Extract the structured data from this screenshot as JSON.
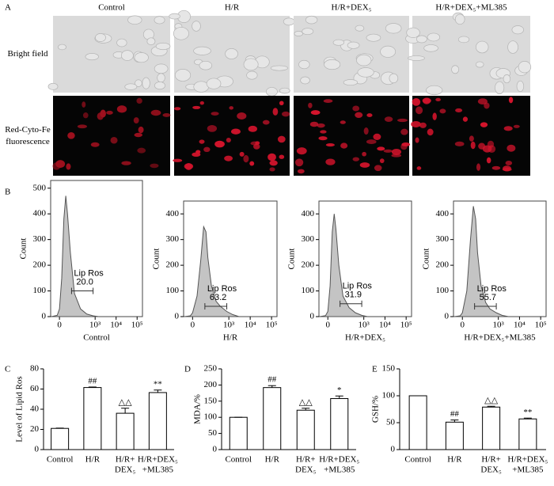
{
  "panel_labels": [
    "A",
    "B",
    "C",
    "D",
    "E"
  ],
  "panel_a": {
    "columns": [
      "Control",
      "H/R",
      "H/R+DEX₅",
      "H/R+DEX₅+ML385"
    ],
    "rows": [
      [
        "Bright field"
      ],
      [
        "Red-Cyto-Fe",
        "fluorescence"
      ]
    ]
  },
  "chart_data": [
    {
      "type": "flow",
      "xlabel": "Control",
      "ylabel": "Count",
      "xscale": "asinh",
      "asinh_width": 40,
      "xlim": [
        -45,
        180000
      ],
      "xticks": [
        0,
        {
          "value": 1000,
          "label": "10³"
        },
        {
          "value": 10000,
          "label": "10⁴"
        },
        {
          "value": 100000,
          "label": "10⁵"
        }
      ],
      "ylim": [
        0,
        530
      ],
      "yticks": [
        0,
        100,
        200,
        300,
        400,
        500
      ],
      "x": [
        -40,
        -10,
        0,
        10,
        20,
        30,
        40,
        60,
        100,
        200,
        400,
        800,
        1500
      ],
      "values": [
        0,
        5,
        30,
        150,
        380,
        470,
        400,
        250,
        90,
        30,
        10,
        3,
        0
      ],
      "gate": {
        "label": "Lip Ros",
        "value": 20,
        "value_label": "20.0",
        "range": [
          70,
          800
        ],
        "y": 100
      }
    },
    {
      "type": "flow",
      "xlabel": "H/R",
      "ylabel": "Count",
      "xscale": "asinh",
      "asinh_width": 40,
      "xlim": [
        -45,
        180000
      ],
      "xticks": [
        0,
        {
          "value": 1000,
          "label": "10³"
        },
        {
          "value": 10000,
          "label": "10⁴"
        },
        {
          "value": 100000,
          "label": "10⁵"
        }
      ],
      "ylim": [
        0,
        450
      ],
      "yticks": [
        0,
        100,
        200,
        300,
        400
      ],
      "x": [
        -40,
        -10,
        0,
        20,
        40,
        60,
        80,
        100,
        150,
        250,
        400,
        800,
        1500,
        3000
      ],
      "values": [
        0,
        3,
        15,
        80,
        220,
        350,
        330,
        230,
        120,
        60,
        40,
        20,
        8,
        0
      ],
      "gate": {
        "label": "Lip Ros",
        "value": 63.2,
        "value_label": "63.2",
        "range": [
          70,
          800
        ],
        "y": 40
      }
    },
    {
      "type": "flow",
      "xlabel": "H/R+DEX₅",
      "ylabel": "Count",
      "xscale": "asinh",
      "asinh_width": 40,
      "xlim": [
        -45,
        180000
      ],
      "xticks": [
        0,
        {
          "value": 1000,
          "label": "10³"
        },
        {
          "value": 10000,
          "label": "10⁴"
        },
        {
          "value": 100000,
          "label": "10⁵"
        }
      ],
      "ylim": [
        0,
        450
      ],
      "yticks": [
        0,
        100,
        200,
        300,
        400
      ],
      "x": [
        -40,
        -10,
        0,
        10,
        20,
        30,
        40,
        60,
        100,
        200,
        400,
        800,
        1500
      ],
      "values": [
        0,
        4,
        20,
        120,
        330,
        400,
        340,
        200,
        80,
        35,
        15,
        5,
        0
      ],
      "gate": {
        "label": "Lip Ros",
        "value": 31.9,
        "value_label": "31.9",
        "range": [
          70,
          800
        ],
        "y": 50
      }
    },
    {
      "type": "flow",
      "xlabel": "H/R+DEX₅+ML385",
      "ylabel": "Count",
      "xscale": "asinh",
      "asinh_width": 40,
      "xlim": [
        -45,
        180000
      ],
      "xticks": [
        0,
        {
          "value": 1000,
          "label": "10³"
        },
        {
          "value": 10000,
          "label": "10⁴"
        },
        {
          "value": 100000,
          "label": "10⁵"
        }
      ],
      "ylim": [
        0,
        450
      ],
      "yticks": [
        0,
        100,
        200,
        300,
        400
      ],
      "x": [
        -40,
        -10,
        0,
        20,
        40,
        60,
        80,
        100,
        150,
        250,
        400,
        800,
        1500,
        3000
      ],
      "values": [
        0,
        3,
        15,
        100,
        300,
        430,
        380,
        250,
        120,
        55,
        30,
        15,
        5,
        0
      ],
      "gate": {
        "label": "Lip Ros",
        "value": 55.7,
        "value_label": "55.7",
        "range": [
          70,
          800
        ],
        "y": 40
      }
    },
    {
      "type": "bar",
      "ylabel": "Level of Lipid Ros",
      "ylim": [
        0,
        80
      ],
      "yticks": [
        0,
        20,
        40,
        60,
        80
      ],
      "categories": [
        [
          "Control"
        ],
        [
          "H/R"
        ],
        [
          "H/R+",
          "DEX₅"
        ],
        [
          "H/R+DEX₅",
          "+ML385"
        ]
      ],
      "values": [
        21,
        61.5,
        36,
        56.5
      ],
      "errors": [
        0.3,
        0.5,
        5,
        2.5
      ],
      "annotations": [
        null,
        "##",
        "△△",
        "**"
      ]
    },
    {
      "type": "bar",
      "ylabel": "MDA/%",
      "ylim": [
        0,
        250
      ],
      "yticks": [
        0,
        50,
        100,
        150,
        200,
        250
      ],
      "categories": [
        [
          "Control"
        ],
        [
          "H/R"
        ],
        [
          "H/R+",
          "DEX₅"
        ],
        [
          "H/R+DEX₅",
          "+ML385"
        ]
      ],
      "values": [
        100,
        192,
        122,
        158
      ],
      "errors": [
        0,
        6,
        6,
        8
      ],
      "annotations": [
        null,
        "##",
        "△△",
        "*"
      ]
    },
    {
      "type": "bar",
      "ylabel": "GSH/%",
      "ylim": [
        0,
        150
      ],
      "yticks": [
        0,
        50,
        100,
        150
      ],
      "categories": [
        [
          "Control"
        ],
        [
          "H/R"
        ],
        [
          "H/R+",
          "DEX₅"
        ],
        [
          "H/R+DEX₅",
          "+ML385"
        ]
      ],
      "values": [
        100,
        51,
        79,
        57
      ],
      "errors": [
        0,
        4,
        1.5,
        1.5
      ],
      "annotations": [
        null,
        "##",
        "△△",
        "**"
      ]
    }
  ]
}
